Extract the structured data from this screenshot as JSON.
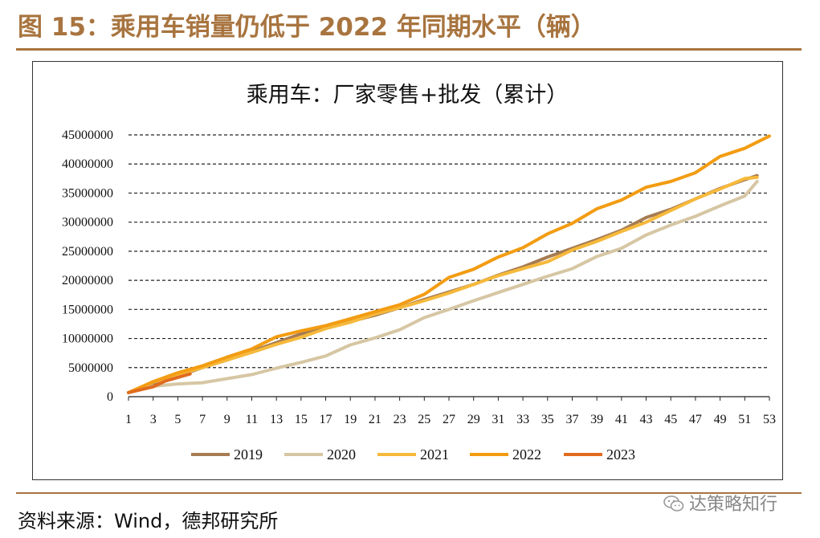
{
  "figure": {
    "title": "图 15：乘用车销量仍低于 2022 年同期水平（辆）",
    "source": "资料来源：Wind，德邦研究所",
    "watermark": "达策略知行",
    "watermark_icon": "wechat-icon"
  },
  "chart_data": {
    "type": "line",
    "title": "乘用车：厂家零售+批发（累计）",
    "xlabel": "",
    "ylabel": "",
    "ylim": [
      0,
      45000000
    ],
    "xlim": [
      1,
      53
    ],
    "yticks": [
      0,
      5000000,
      10000000,
      15000000,
      20000000,
      25000000,
      30000000,
      35000000,
      40000000,
      45000000
    ],
    "ytick_labels": [
      "0",
      "5000000",
      "10000000",
      "15000000",
      "20000000",
      "25000000",
      "30000000",
      "35000000",
      "40000000",
      "45000000"
    ],
    "xtick_labels": [
      "1",
      "3",
      "5",
      "7",
      "9",
      "11",
      "13",
      "15",
      "17",
      "19",
      "21",
      "23",
      "25",
      "27",
      "29",
      "31",
      "33",
      "35",
      "37",
      "39",
      "41",
      "43",
      "45",
      "47",
      "49",
      "51",
      "53"
    ],
    "grid": "horizontal-dashed",
    "legend_position": "bottom",
    "series": [
      {
        "name": "2019",
        "color": "#a67c52",
        "x": [
          1,
          3,
          5,
          7,
          9,
          11,
          13,
          15,
          17,
          19,
          21,
          23,
          25,
          27,
          29,
          31,
          33,
          35,
          37,
          39,
          41,
          43,
          45,
          47,
          49,
          51,
          52
        ],
        "values": [
          700000,
          2200000,
          3500000,
          5000000,
          6300000,
          7800000,
          9300000,
          10800000,
          11800000,
          12900000,
          14000000,
          15300000,
          16700000,
          18000000,
          19300000,
          20900000,
          22300000,
          24000000,
          25500000,
          27000000,
          28600000,
          30800000,
          32200000,
          34000000,
          35800000,
          37300000,
          38000000
        ]
      },
      {
        "name": "2020",
        "color": "#d6c6a3",
        "x": [
          1,
          3,
          5,
          7,
          9,
          11,
          13,
          15,
          17,
          19,
          21,
          23,
          25,
          27,
          29,
          31,
          33,
          35,
          37,
          39,
          41,
          43,
          45,
          47,
          49,
          51,
          52
        ],
        "values": [
          700000,
          1800000,
          2200000,
          2400000,
          3100000,
          3800000,
          4900000,
          5900000,
          7000000,
          8900000,
          10100000,
          11500000,
          13600000,
          15000000,
          16500000,
          17900000,
          19300000,
          20700000,
          22000000,
          24100000,
          25500000,
          27800000,
          29500000,
          31000000,
          32800000,
          34500000,
          37000000
        ]
      },
      {
        "name": "2021",
        "color": "#f6b93b",
        "x": [
          1,
          3,
          5,
          7,
          9,
          11,
          13,
          15,
          17,
          19,
          21,
          23,
          25,
          27,
          29,
          31,
          33,
          35,
          37,
          39,
          41,
          43,
          45,
          47,
          49,
          51,
          52
        ],
        "values": [
          700000,
          2500000,
          3800000,
          5000000,
          6300000,
          7600000,
          9000000,
          10200000,
          11700000,
          12800000,
          14200000,
          15300000,
          16500000,
          17800000,
          19300000,
          20800000,
          22000000,
          23200000,
          25200000,
          26700000,
          28400000,
          30000000,
          32000000,
          34000000,
          35700000,
          37500000,
          37700000
        ]
      },
      {
        "name": "2022",
        "color": "#f39c12",
        "x": [
          1,
          3,
          5,
          7,
          9,
          11,
          13,
          15,
          17,
          19,
          21,
          23,
          25,
          27,
          29,
          31,
          33,
          35,
          37,
          39,
          41,
          43,
          45,
          47,
          49,
          51,
          53
        ],
        "values": [
          700000,
          2600000,
          4100000,
          5300000,
          6800000,
          8200000,
          10300000,
          11300000,
          12200000,
          13400000,
          14600000,
          15800000,
          17600000,
          20500000,
          21900000,
          24000000,
          25600000,
          28000000,
          29800000,
          32300000,
          33800000,
          36000000,
          37000000,
          38500000,
          41300000,
          42700000,
          44800000
        ]
      },
      {
        "name": "2023",
        "color": "#e06b1f",
        "x": [
          1,
          2,
          3,
          4,
          5,
          6
        ],
        "values": [
          700000,
          1200000,
          1700000,
          2700000,
          3300000,
          3900000
        ]
      }
    ]
  }
}
